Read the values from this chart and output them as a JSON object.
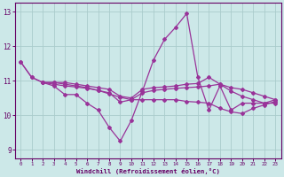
{
  "xlabel": "Windchill (Refroidissement éolien,°C)",
  "bg_color": "#cce8e8",
  "line_color": "#993399",
  "grid_color": "#aacccc",
  "xlim": [
    -0.5,
    23.5
  ],
  "ylim": [
    8.75,
    13.25
  ],
  "xticks": [
    0,
    1,
    2,
    3,
    4,
    5,
    6,
    7,
    8,
    9,
    10,
    11,
    12,
    13,
    14,
    15,
    16,
    17,
    18,
    19,
    20,
    21,
    22,
    23
  ],
  "yticks": [
    9,
    10,
    11,
    12,
    13
  ],
  "line1_x": [
    0,
    1,
    2,
    3,
    4,
    5,
    6,
    7,
    8,
    9,
    10,
    11,
    12,
    13,
    14,
    15,
    16,
    17,
    18,
    19,
    20,
    21,
    22,
    23
  ],
  "line1_y": [
    11.55,
    11.1,
    10.95,
    10.85,
    10.6,
    10.6,
    10.35,
    10.15,
    9.65,
    9.25,
    9.85,
    10.7,
    11.6,
    12.2,
    12.55,
    12.95,
    11.1,
    10.15,
    10.85,
    10.15,
    10.35,
    10.35,
    10.35,
    10.35
  ],
  "line2_x": [
    0,
    1,
    2,
    3,
    4,
    5,
    6,
    7,
    8,
    9,
    10,
    11,
    12,
    13,
    14,
    15,
    16,
    17,
    18,
    19,
    20,
    21,
    22,
    23
  ],
  "line2_y": [
    11.55,
    11.1,
    10.95,
    10.95,
    10.95,
    10.9,
    10.85,
    10.8,
    10.75,
    10.55,
    10.5,
    10.75,
    10.8,
    10.82,
    10.85,
    10.9,
    10.92,
    11.1,
    10.9,
    10.8,
    10.75,
    10.65,
    10.55,
    10.45
  ],
  "line3_x": [
    2,
    3,
    4,
    5,
    6,
    7,
    8,
    9,
    10,
    11,
    12,
    13,
    14,
    15,
    16,
    17,
    18,
    19,
    20,
    21,
    22,
    23
  ],
  "line3_y": [
    10.95,
    10.95,
    10.9,
    10.85,
    10.8,
    10.72,
    10.62,
    10.52,
    10.45,
    10.45,
    10.45,
    10.45,
    10.45,
    10.4,
    10.38,
    10.35,
    10.2,
    10.1,
    10.05,
    10.2,
    10.3,
    10.4
  ],
  "line4_x": [
    2,
    3,
    4,
    5,
    6,
    7,
    8,
    9,
    10,
    11,
    12,
    13,
    14,
    15,
    16,
    17,
    18,
    19,
    20,
    21,
    22,
    23
  ],
  "line4_y": [
    10.95,
    10.9,
    10.85,
    10.82,
    10.78,
    10.72,
    10.65,
    10.38,
    10.45,
    10.65,
    10.72,
    10.75,
    10.78,
    10.8,
    10.82,
    10.85,
    10.9,
    10.7,
    10.55,
    10.45,
    10.35,
    10.45
  ]
}
